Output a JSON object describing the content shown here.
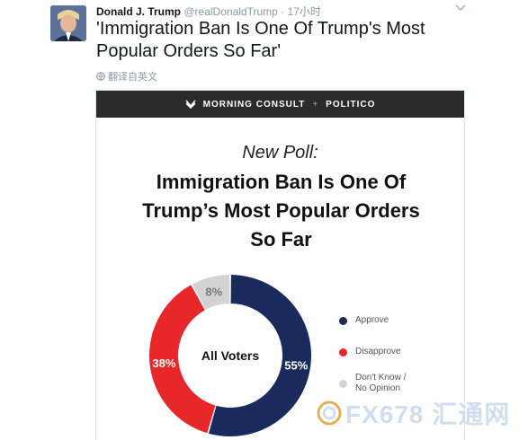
{
  "tweet": {
    "display_name": "Donald J. Trump",
    "handle": "@realDonaldTrump",
    "separator": "·",
    "time": "17小时",
    "text": "'Immigration Ban Is One Of Trump's Most Popular Orders So Far'",
    "translate_label": "翻译自英文"
  },
  "card": {
    "brand_left": "MORNING CONSULT",
    "brand_separator": "+",
    "brand_right": "POLITICO",
    "kicker": "New Poll:",
    "title": "Immigration Ban Is One Of Trump’s Most Popular Orders So Far"
  },
  "chart_data": {
    "type": "pie",
    "center_label": "All Voters",
    "slices": [
      {
        "label": "Approve",
        "value": 55,
        "display": "55%",
        "color": "#1b2a5c"
      },
      {
        "label": "Disapprove",
        "value": 38,
        "display": "38%",
        "color": "#e8272a"
      },
      {
        "label": "Don't Know / No Opinion",
        "value": 8,
        "display": "8%",
        "color": "#d3d3d3"
      }
    ],
    "legend": [
      "Approve",
      "Disapprove",
      "Don't Know /",
      "No Opinion"
    ]
  },
  "watermark": {
    "text": "FX678 汇通网"
  }
}
